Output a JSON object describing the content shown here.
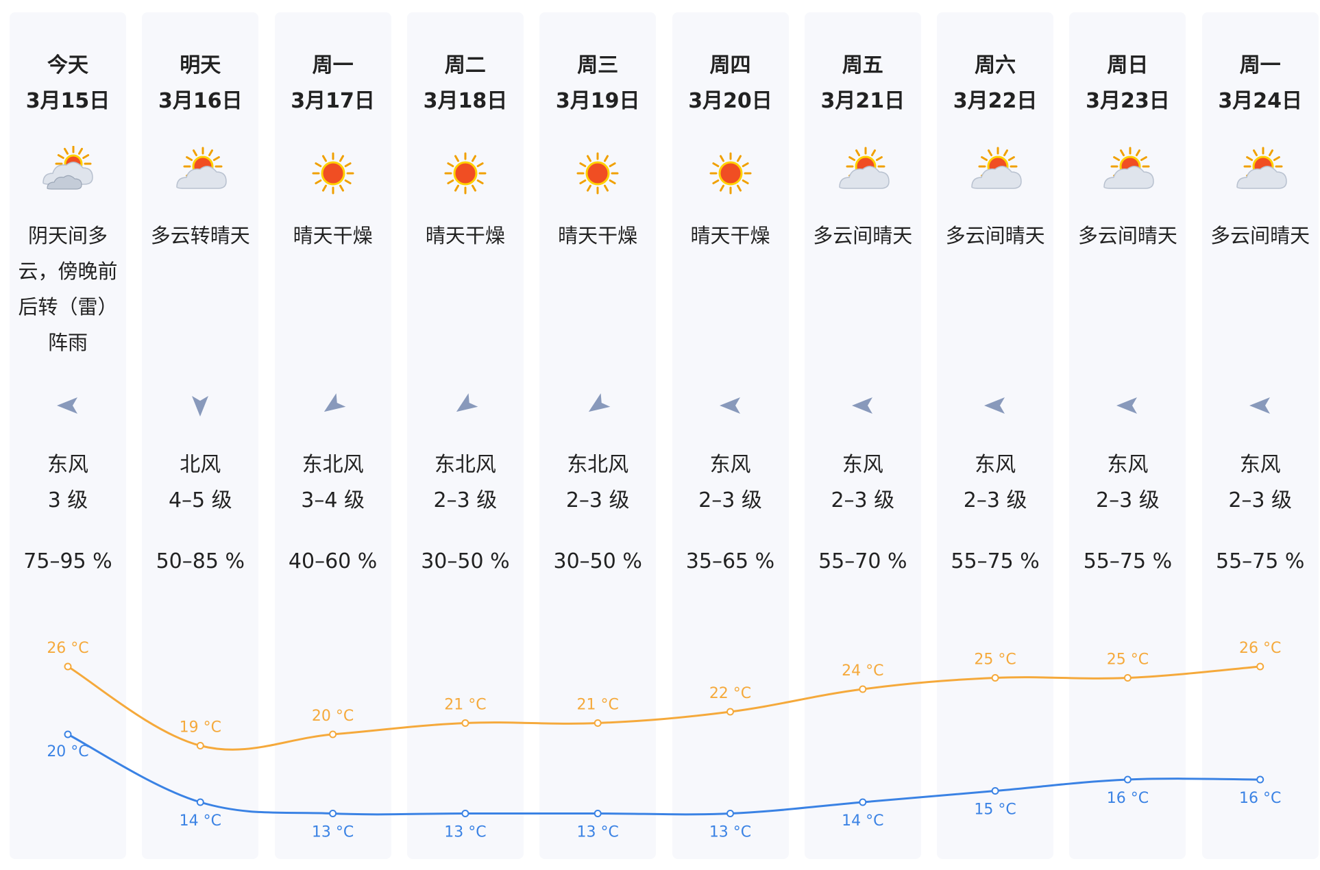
{
  "days": [
    {
      "name": "今天",
      "date": "3月15日",
      "icon": "cloudy-sun-icon",
      "weather": "阴天间多云，傍晚前后转（雷）阵雨",
      "wind_dir": "东风",
      "wind_level": "3 级",
      "wind_arrow": "east-wind-arrow-icon",
      "wind_rotation_deg": 180,
      "humidity": "75–95 %",
      "high": "26 °C",
      "low": "20 °C"
    },
    {
      "name": "明天",
      "date": "3月16日",
      "icon": "partly-cloudy-icon",
      "weather": "多云转晴天",
      "wind_dir": "北风",
      "wind_level": "4–5 级",
      "wind_arrow": "north-wind-arrow-icon",
      "wind_rotation_deg": 90,
      "humidity": "50–85 %",
      "high": "19 °C",
      "low": "14 °C"
    },
    {
      "name": "周一",
      "date": "3月17日",
      "icon": "sunny-icon",
      "weather": "晴天干燥",
      "wind_dir": "东北风",
      "wind_level": "3–4 级",
      "wind_arrow": "northeast-wind-arrow-icon",
      "wind_rotation_deg": 145,
      "humidity": "40–60 %",
      "high": "20 °C",
      "low": "13 °C"
    },
    {
      "name": "周二",
      "date": "3月18日",
      "icon": "sunny-icon",
      "weather": "晴天干燥",
      "wind_dir": "东北风",
      "wind_level": "2–3 级",
      "wind_arrow": "northeast-wind-arrow-icon",
      "wind_rotation_deg": 145,
      "humidity": "30–50 %",
      "high": "21 °C",
      "low": "13 °C"
    },
    {
      "name": "周三",
      "date": "3月19日",
      "icon": "sunny-icon",
      "weather": "晴天干燥",
      "wind_dir": "东北风",
      "wind_level": "2–3 级",
      "wind_arrow": "northeast-wind-arrow-icon",
      "wind_rotation_deg": 145,
      "humidity": "30–50 %",
      "high": "21 °C",
      "low": "13 °C"
    },
    {
      "name": "周四",
      "date": "3月20日",
      "icon": "sunny-icon",
      "weather": "晴天干燥",
      "wind_dir": "东风",
      "wind_level": "2–3 级",
      "wind_arrow": "east-wind-arrow-icon",
      "wind_rotation_deg": 180,
      "humidity": "35–65 %",
      "high": "22 °C",
      "low": "13 °C"
    },
    {
      "name": "周五",
      "date": "3月21日",
      "icon": "partly-cloudy-icon",
      "weather": "多云间晴天",
      "wind_dir": "东风",
      "wind_level": "2–3 级",
      "wind_arrow": "east-wind-arrow-icon",
      "wind_rotation_deg": 180,
      "humidity": "55–70 %",
      "high": "24 °C",
      "low": "14 °C"
    },
    {
      "name": "周六",
      "date": "3月22日",
      "icon": "partly-cloudy-icon",
      "weather": "多云间晴天",
      "wind_dir": "东风",
      "wind_level": "2–3 级",
      "wind_arrow": "east-wind-arrow-icon",
      "wind_rotation_deg": 180,
      "humidity": "55–75 %",
      "high": "25 °C",
      "low": "15 °C"
    },
    {
      "name": "周日",
      "date": "3月23日",
      "icon": "partly-cloudy-icon",
      "weather": "多云间晴天",
      "wind_dir": "东风",
      "wind_level": "2–3 级",
      "wind_arrow": "east-wind-arrow-icon",
      "wind_rotation_deg": 180,
      "humidity": "55–75 %",
      "high": "25 °C",
      "low": "16 °C"
    },
    {
      "name": "周一",
      "date": "3月24日",
      "icon": "partly-cloudy-icon",
      "weather": "多云间晴天",
      "wind_dir": "东风",
      "wind_level": "2–3 级",
      "wind_arrow": "east-wind-arrow-icon",
      "wind_rotation_deg": 180,
      "humidity": "55–75 %",
      "high": "26 °C",
      "low": "16 °C"
    }
  ],
  "colors": {
    "high_line": "#f5a93b",
    "low_line": "#3a82e4",
    "sun": "#f04e23",
    "sun_glow": "#ffd000",
    "cloud": "#dfe4ec",
    "arrow": "#8899bb"
  },
  "chart_data": {
    "type": "line",
    "x": [
      "3月15日",
      "3月16日",
      "3月17日",
      "3月18日",
      "3月19日",
      "3月20日",
      "3月21日",
      "3月22日",
      "3月23日",
      "3月24日"
    ],
    "series": [
      {
        "values": [
          26,
          19,
          20,
          21,
          21,
          22,
          24,
          25,
          25,
          26
        ]
      },
      {
        "values": [
          20,
          14,
          13,
          13,
          13,
          13,
          14,
          15,
          16,
          16
        ]
      }
    ]
  }
}
